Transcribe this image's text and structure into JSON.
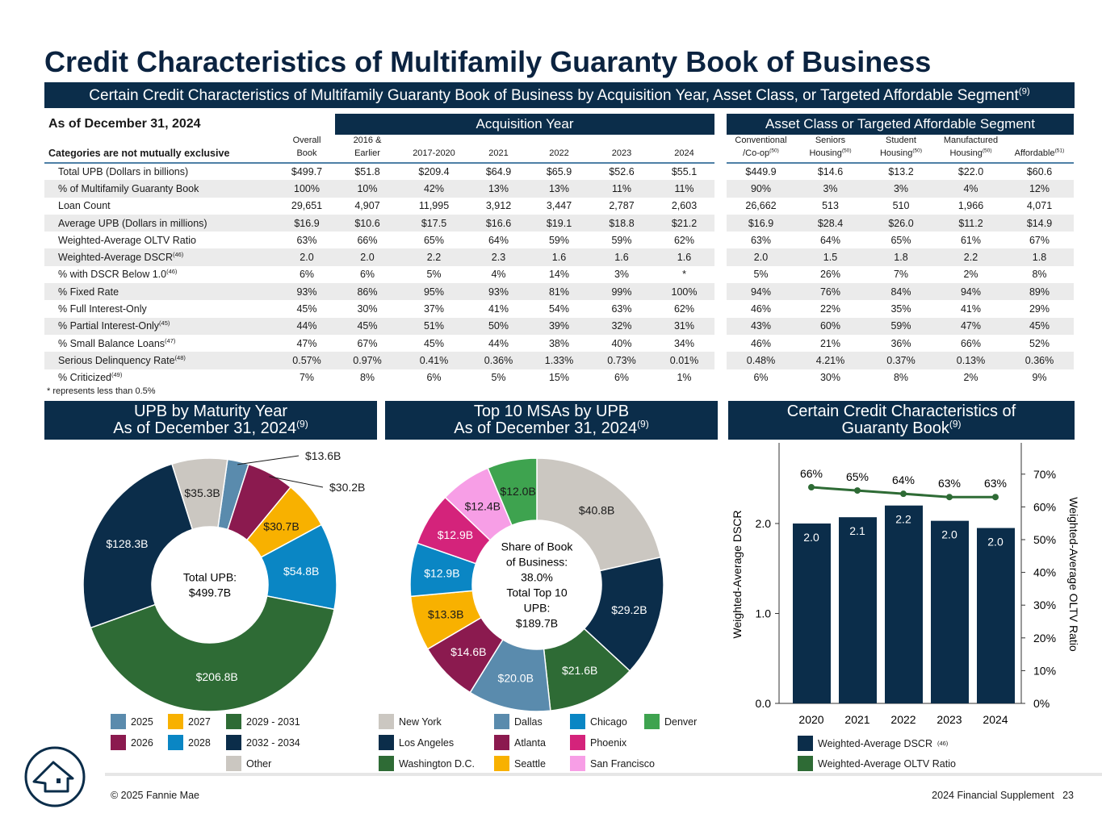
{
  "title": "Credit Characteristics of Multifamily Guaranty Book of Business",
  "banner": {
    "text": "Certain Credit Characteristics of Multifamily Guaranty Book of Business by Acquisition Year, Asset Class, or Targeted Affordable Segment",
    "sup": "(9)"
  },
  "table": {
    "as_of": "As of December 31, 2024",
    "group1": "Acquisition Year",
    "group2": "Asset Class or Targeted Affordable Segment",
    "corner": "Categories are not mutually exclusive",
    "columns": [
      {
        "l1": "Overall",
        "l2": "Book",
        "sup": ""
      },
      {
        "l1": "2016 &",
        "l2": "Earlier",
        "sup": ""
      },
      {
        "l1": "",
        "l2": "2017-2020",
        "sup": ""
      },
      {
        "l1": "",
        "l2": "2021",
        "sup": ""
      },
      {
        "l1": "",
        "l2": "2022",
        "sup": ""
      },
      {
        "l1": "",
        "l2": "2023",
        "sup": ""
      },
      {
        "l1": "",
        "l2": "2024",
        "sup": ""
      },
      {
        "l1": "Conventional",
        "l2": "/Co-op",
        "sup": "(50)"
      },
      {
        "l1": "Seniors",
        "l2": "Housing",
        "sup": "(50)"
      },
      {
        "l1": "Student",
        "l2": "Housing",
        "sup": "(50)"
      },
      {
        "l1": "Manufactured",
        "l2": "Housing",
        "sup": "(50)"
      },
      {
        "l1": "",
        "l2": "Affordable",
        "sup": "(51)"
      }
    ],
    "rows": [
      {
        "label": "Total UPB (Dollars in billions)",
        "sup": "",
        "values": [
          "$499.7",
          "$51.8",
          "$209.4",
          "$64.9",
          "$65.9",
          "$52.6",
          "$55.1",
          "$449.9",
          "$14.6",
          "$13.2",
          "$22.0",
          "$60.6"
        ]
      },
      {
        "label": "% of Multifamily Guaranty Book",
        "sup": "",
        "values": [
          "100%",
          "10%",
          "42%",
          "13%",
          "13%",
          "11%",
          "11%",
          "90%",
          "3%",
          "3%",
          "4%",
          "12%"
        ]
      },
      {
        "label": "Loan Count",
        "sup": "",
        "values": [
          "29,651",
          "4,907",
          "11,995",
          "3,912",
          "3,447",
          "2,787",
          "2,603",
          "26,662",
          "513",
          "510",
          "1,966",
          "4,071"
        ]
      },
      {
        "label": "Average UPB (Dollars in millions)",
        "sup": "",
        "values": [
          "$16.9",
          "$10.6",
          "$17.5",
          "$16.6",
          "$19.1",
          "$18.8",
          "$21.2",
          "$16.9",
          "$28.4",
          "$26.0",
          "$11.2",
          "$14.9"
        ]
      },
      {
        "label": "Weighted-Average OLTV Ratio",
        "sup": "",
        "values": [
          "63%",
          "66%",
          "65%",
          "64%",
          "59%",
          "59%",
          "62%",
          "63%",
          "64%",
          "65%",
          "61%",
          "67%"
        ]
      },
      {
        "label": "Weighted-Average DSCR",
        "sup": "(46)",
        "values": [
          "2.0",
          "2.0",
          "2.2",
          "2.3",
          "1.6",
          "1.6",
          "1.6",
          "2.0",
          "1.5",
          "1.8",
          "2.2",
          "1.8"
        ]
      },
      {
        "label": "% with DSCR Below 1.0",
        "sup": "(46)",
        "values": [
          "6%",
          "6%",
          "5%",
          "4%",
          "14%",
          "3%",
          "*",
          "5%",
          "26%",
          "7%",
          "2%",
          "8%"
        ]
      },
      {
        "label": "% Fixed Rate",
        "sup": "",
        "values": [
          "93%",
          "86%",
          "95%",
          "93%",
          "81%",
          "99%",
          "100%",
          "94%",
          "76%",
          "84%",
          "94%",
          "89%"
        ]
      },
      {
        "label": "% Full Interest-Only",
        "sup": "",
        "values": [
          "45%",
          "30%",
          "37%",
          "41%",
          "54%",
          "63%",
          "62%",
          "46%",
          "22%",
          "35%",
          "41%",
          "29%"
        ]
      },
      {
        "label": "% Partial Interest-Only",
        "sup": "(45)",
        "values": [
          "44%",
          "45%",
          "51%",
          "50%",
          "39%",
          "32%",
          "31%",
          "43%",
          "60%",
          "59%",
          "47%",
          "45%"
        ]
      },
      {
        "label": "% Small Balance Loans",
        "sup": "(47)",
        "values": [
          "47%",
          "67%",
          "45%",
          "44%",
          "38%",
          "40%",
          "34%",
          "46%",
          "21%",
          "36%",
          "66%",
          "52%"
        ]
      },
      {
        "label": "Serious Delinquency Rate",
        "sup": "(48)",
        "values": [
          "0.57%",
          "0.97%",
          "0.41%",
          "0.36%",
          "1.33%",
          "0.73%",
          "0.01%",
          "0.48%",
          "4.21%",
          "0.37%",
          "0.13%",
          "0.36%"
        ]
      },
      {
        "label": "% Criticized",
        "sup": "(49)",
        "values": [
          "7%",
          "8%",
          "6%",
          "5%",
          "15%",
          "6%",
          "1%",
          "6%",
          "30%",
          "8%",
          "2%",
          "9%"
        ]
      }
    ],
    "note": "*  represents less than 0.5%"
  },
  "sections": {
    "maturity": {
      "line1": "UPB by Maturity Year",
      "line2": "As of December 31, 2024",
      "sup": "(9)"
    },
    "msa": {
      "line1": "Top 10 MSAs by UPB",
      "line2": "As of December 31, 2024",
      "sup": "(9)"
    },
    "credit": {
      "line1": "Certain Credit Characteristics of",
      "line2": "Guaranty Book",
      "sup": "(9)"
    }
  },
  "chart_data": [
    {
      "type": "pie",
      "title": "UPB by Maturity Year",
      "center_label": [
        "Total UPB:",
        "$499.7B"
      ],
      "slices": [
        {
          "name": "2025",
          "value": 13.6,
          "label": "$13.6B",
          "color": "#5a8bad",
          "text": "#1a1a1a",
          "external": true
        },
        {
          "name": "2026",
          "value": 30.2,
          "label": "$30.2B",
          "color": "#8b1a4f",
          "text": "#1a1a1a",
          "external": true
        },
        {
          "name": "2027",
          "value": 30.7,
          "label": "$30.7B",
          "color": "#f8b100",
          "text": "#1a1a1a"
        },
        {
          "name": "2028",
          "value": 54.8,
          "label": "$54.8B",
          "color": "#0a86c4",
          "text": "#ffffff"
        },
        {
          "name": "2029 - 2031",
          "value": 206.8,
          "label": "$206.8B",
          "color": "#2e6b35",
          "text": "#ffffff"
        },
        {
          "name": "2032 - 2034",
          "value": 128.3,
          "label": "$128.3B",
          "color": "#0b2d4a",
          "text": "#ffffff"
        },
        {
          "name": "Other",
          "value": 35.3,
          "label": "$35.3B",
          "color": "#cbc7c1",
          "text": "#1a1a1a"
        }
      ]
    },
    {
      "type": "pie",
      "title": "Top 10 MSAs by UPB",
      "center_label": [
        "Share of Book",
        "of Business:",
        "38.0%",
        "Total Top 10",
        "UPB:",
        "$189.7B"
      ],
      "slices": [
        {
          "name": "New York",
          "value": 40.8,
          "label": "$40.8B",
          "color": "#cbc7c1",
          "text": "#1a1a1a"
        },
        {
          "name": "Los Angeles",
          "value": 29.2,
          "label": "$29.2B",
          "color": "#0b2d4a",
          "text": "#ffffff"
        },
        {
          "name": "Washington D.C.",
          "value": 21.6,
          "label": "$21.6B",
          "color": "#2e6b35",
          "text": "#ffffff"
        },
        {
          "name": "Dallas",
          "value": 20.0,
          "label": "$20.0B",
          "color": "#5a8bad",
          "text": "#ffffff"
        },
        {
          "name": "Atlanta",
          "value": 14.6,
          "label": "$14.6B",
          "color": "#8b1a4f",
          "text": "#ffffff"
        },
        {
          "name": "Seattle",
          "value": 13.3,
          "label": "$13.3B",
          "color": "#f8b100",
          "text": "#1a1a1a"
        },
        {
          "name": "Chicago",
          "value": 12.9,
          "label": "$12.9B",
          "color": "#0a86c4",
          "text": "#ffffff"
        },
        {
          "name": "Phoenix",
          "value": 12.9,
          "label": "$12.9B",
          "color": "#d4237b",
          "text": "#ffffff"
        },
        {
          "name": "San Francisco",
          "value": 12.4,
          "label": "$12.4B",
          "color": "#f79ee6",
          "text": "#1a1a1a"
        },
        {
          "name": "Denver",
          "value": 12.0,
          "label": "$12.0B",
          "color": "#3ea34f",
          "text": "#1a1a1a"
        }
      ]
    },
    {
      "type": "bar",
      "title": "Certain Credit Characteristics of Guaranty Book",
      "categories": [
        "2020",
        "2021",
        "2022",
        "2023",
        "2024"
      ],
      "series": [
        {
          "name": "Weighted-Average DSCR",
          "sup": "(46)",
          "type": "bar",
          "values": [
            2.0,
            2.07,
            2.2,
            2.03,
            1.95
          ],
          "labels": [
            "2.0",
            "2.1",
            "2.2",
            "2.0",
            "2.0"
          ],
          "color": "#0b2d4a"
        },
        {
          "name": "Weighted-Average OLTV Ratio",
          "sup": "",
          "type": "line",
          "values": [
            66,
            65,
            64,
            63,
            63
          ],
          "labels": [
            "66%",
            "65%",
            "64%",
            "63%",
            "63%"
          ],
          "color": "#2e6b35"
        }
      ],
      "ylabel": "Weighted-Average DSCR",
      "y2label": "Weighted-Average OLTV Ratio",
      "yticks": [
        "0.0",
        "1.0",
        "2.0"
      ],
      "y2ticks": [
        "0%",
        "10%",
        "20%",
        "30%",
        "40%",
        "50%",
        "60%",
        "70%"
      ],
      "ylim": [
        0,
        2.9
      ],
      "y2lim": [
        0,
        79.5
      ]
    }
  ],
  "footer": {
    "copyright": "© 2025 Fannie Mae",
    "doc": "2024 Financial Supplement",
    "page": "23"
  }
}
